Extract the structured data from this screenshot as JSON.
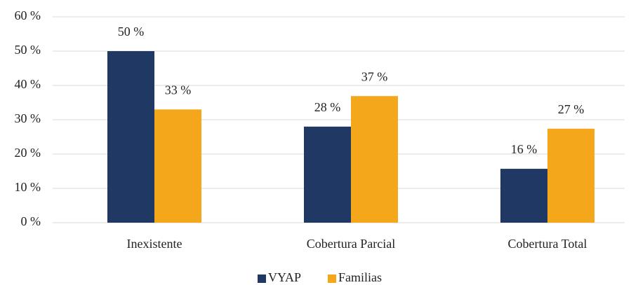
{
  "chart_data": {
    "type": "bar",
    "categories": [
      "Inexistente",
      "Cobertura Parcial",
      "Cobertura Total"
    ],
    "series": [
      {
        "name": "VYAP",
        "color": "#203864",
        "values": [
          50,
          28,
          15.7
        ],
        "value_labels": [
          "50 %",
          "28 %",
          "16 %"
        ]
      },
      {
        "name": "Familias",
        "color": "#f5a71c",
        "values": [
          33,
          36.9,
          27.4
        ],
        "value_labels": [
          "33 %",
          "37 %",
          "27 %"
        ]
      }
    ],
    "ylim": [
      0,
      60
    ],
    "yticks": [
      {
        "value": 0,
        "label": "0 %"
      },
      {
        "value": 10,
        "label": "10 %"
      },
      {
        "value": 20,
        "label": "20 %"
      },
      {
        "value": 30,
        "label": "30 %"
      },
      {
        "value": 40,
        "label": "40 %"
      },
      {
        "value": 50,
        "label": "50 %"
      },
      {
        "value": 60,
        "label": "60 %"
      }
    ],
    "grid": true,
    "legend": "bottom"
  }
}
